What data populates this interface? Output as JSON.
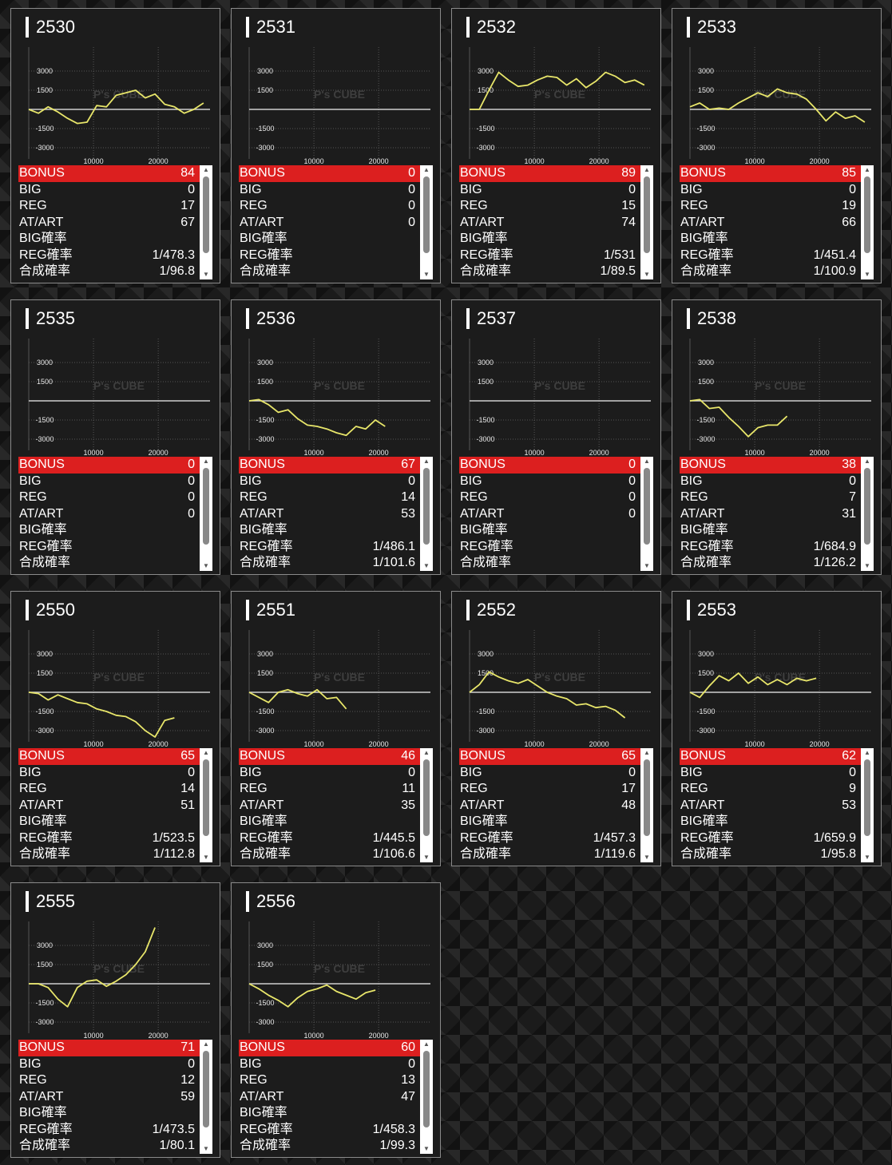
{
  "colors": {
    "bonus_bar": "#dc1f1f",
    "line": "#e8e66a",
    "axis": "#cfcfcf"
  },
  "chart_axis": {
    "y_ticks": [
      "3000",
      "1500",
      "-1500",
      "-3000"
    ],
    "x_ticks": [
      "10000",
      "20000"
    ]
  },
  "row_labels": {
    "bonus": "BONUS",
    "big": "BIG",
    "reg": "REG",
    "atart": "AT/ART",
    "big_rate": "BIG確率",
    "reg_rate": "REG確率",
    "total_rate": "合成確率"
  },
  "watermark": "P's CUBE",
  "scroll_icons": {
    "up": "▲",
    "down": "▼"
  },
  "machines": [
    {
      "number": "2530",
      "bonus": "84",
      "big": "0",
      "reg": "17",
      "atart": "67",
      "big_rate": "",
      "reg_rate": "1/478.3",
      "total_rate": "1/96.8"
    },
    {
      "number": "2531",
      "bonus": "0",
      "big": "0",
      "reg": "0",
      "atart": "0",
      "big_rate": "",
      "reg_rate": "",
      "total_rate": ""
    },
    {
      "number": "2532",
      "bonus": "89",
      "big": "0",
      "reg": "15",
      "atart": "74",
      "big_rate": "",
      "reg_rate": "1/531",
      "total_rate": "1/89.5"
    },
    {
      "number": "2533",
      "bonus": "85",
      "big": "0",
      "reg": "19",
      "atart": "66",
      "big_rate": "",
      "reg_rate": "1/451.4",
      "total_rate": "1/100.9"
    },
    {
      "number": "2535",
      "bonus": "0",
      "big": "0",
      "reg": "0",
      "atart": "0",
      "big_rate": "",
      "reg_rate": "",
      "total_rate": ""
    },
    {
      "number": "2536",
      "bonus": "67",
      "big": "0",
      "reg": "14",
      "atart": "53",
      "big_rate": "",
      "reg_rate": "1/486.1",
      "total_rate": "1/101.6"
    },
    {
      "number": "2537",
      "bonus": "0",
      "big": "0",
      "reg": "0",
      "atart": "0",
      "big_rate": "",
      "reg_rate": "",
      "total_rate": ""
    },
    {
      "number": "2538",
      "bonus": "38",
      "big": "0",
      "reg": "7",
      "atart": "31",
      "big_rate": "",
      "reg_rate": "1/684.9",
      "total_rate": "1/126.2"
    },
    {
      "number": "2550",
      "bonus": "65",
      "big": "0",
      "reg": "14",
      "atart": "51",
      "big_rate": "",
      "reg_rate": "1/523.5",
      "total_rate": "1/112.8"
    },
    {
      "number": "2551",
      "bonus": "46",
      "big": "0",
      "reg": "11",
      "atart": "35",
      "big_rate": "",
      "reg_rate": "1/445.5",
      "total_rate": "1/106.6"
    },
    {
      "number": "2552",
      "bonus": "65",
      "big": "0",
      "reg": "17",
      "atart": "48",
      "big_rate": "",
      "reg_rate": "1/457.3",
      "total_rate": "1/119.6"
    },
    {
      "number": "2553",
      "bonus": "62",
      "big": "0",
      "reg": "9",
      "atart": "53",
      "big_rate": "",
      "reg_rate": "1/659.9",
      "total_rate": "1/95.8"
    },
    {
      "number": "2555",
      "bonus": "71",
      "big": "0",
      "reg": "12",
      "atart": "59",
      "big_rate": "",
      "reg_rate": "1/473.5",
      "total_rate": "1/80.1"
    },
    {
      "number": "2556",
      "bonus": "60",
      "big": "0",
      "reg": "13",
      "atart": "47",
      "big_rate": "",
      "reg_rate": "1/458.3",
      "total_rate": "1/99.3"
    }
  ],
  "chart_data": [
    {
      "type": "line",
      "title": "2530",
      "ylim": [
        -4000,
        4500
      ],
      "x": [
        0,
        1500,
        3000,
        4500,
        6000,
        7500,
        9000,
        10500,
        12000,
        13500,
        15000,
        16500,
        18000,
        19500,
        21000,
        22500,
        24000,
        25500,
        27000
      ],
      "series": [
        {
          "values": [
            0,
            -300,
            200,
            -200,
            -700,
            -1100,
            -1000,
            300,
            200,
            1100,
            1300,
            1500,
            900,
            1200,
            400,
            200,
            -300,
            0,
            500
          ]
        }
      ]
    },
    {
      "type": "line",
      "title": "2531",
      "ylim": [
        -4000,
        4500
      ],
      "x": [],
      "series": [
        {
          "values": []
        }
      ]
    },
    {
      "type": "line",
      "title": "2532",
      "ylim": [
        -4000,
        4500
      ],
      "x": [
        0,
        1500,
        3000,
        4500,
        6000,
        7500,
        9000,
        10500,
        12000,
        13500,
        15000,
        16500,
        18000,
        19500,
        21000,
        22500,
        24000,
        25500,
        27000
      ],
      "series": [
        {
          "values": [
            0,
            0,
            1500,
            2900,
            2300,
            1800,
            1900,
            2300,
            2600,
            2500,
            1900,
            2400,
            1700,
            2200,
            2900,
            2600,
            2100,
            2300,
            1900
          ]
        }
      ]
    },
    {
      "type": "line",
      "title": "2533",
      "ylim": [
        -4000,
        4500
      ],
      "x": [
        0,
        1500,
        3000,
        4500,
        6000,
        7500,
        9000,
        10500,
        12000,
        13500,
        15000,
        16500,
        18000,
        19500,
        21000,
        22500,
        24000,
        25500,
        27000
      ],
      "series": [
        {
          "values": [
            200,
            500,
            0,
            100,
            0,
            500,
            900,
            1300,
            1000,
            1600,
            1300,
            1200,
            800,
            0,
            -900,
            -200,
            -700,
            -500,
            -1000
          ]
        }
      ]
    },
    {
      "type": "line",
      "title": "2535",
      "ylim": [
        -4000,
        4500
      ],
      "x": [],
      "series": [
        {
          "values": []
        }
      ]
    },
    {
      "type": "line",
      "title": "2536",
      "ylim": [
        -4000,
        4500
      ],
      "x": [
        0,
        1500,
        3000,
        4500,
        6000,
        7500,
        9000,
        10500,
        12000,
        13500,
        15000,
        16500,
        18000,
        19500,
        21000
      ],
      "series": [
        {
          "values": [
            0,
            100,
            -300,
            -900,
            -700,
            -1400,
            -1900,
            -2000,
            -2200,
            -2500,
            -2700,
            -2000,
            -2200,
            -1500,
            -2000
          ]
        }
      ]
    },
    {
      "type": "line",
      "title": "2537",
      "ylim": [
        -4000,
        4500
      ],
      "x": [],
      "series": [
        {
          "values": []
        }
      ]
    },
    {
      "type": "line",
      "title": "2538",
      "ylim": [
        -4000,
        4500
      ],
      "x": [
        0,
        1500,
        3000,
        4500,
        6000,
        7500,
        9000,
        10500,
        12000,
        13500,
        15000
      ],
      "series": [
        {
          "values": [
            0,
            100,
            -600,
            -500,
            -1300,
            -2000,
            -2800,
            -2100,
            -1900,
            -1900,
            -1200
          ]
        }
      ]
    },
    {
      "type": "line",
      "title": "2550",
      "ylim": [
        -4000,
        4500
      ],
      "x": [
        0,
        1500,
        3000,
        4500,
        6000,
        7500,
        9000,
        10500,
        12000,
        13500,
        15000,
        16500,
        18000,
        19500,
        21000,
        22500
      ],
      "series": [
        {
          "values": [
            0,
            -100,
            -600,
            -200,
            -500,
            -800,
            -900,
            -1300,
            -1500,
            -1800,
            -1900,
            -2300,
            -3000,
            -3500,
            -2200,
            -2000
          ]
        }
      ]
    },
    {
      "type": "line",
      "title": "2551",
      "ylim": [
        -4000,
        4500
      ],
      "x": [
        0,
        1500,
        3000,
        4500,
        6000,
        7500,
        9000,
        10500,
        12000,
        13500,
        15000
      ],
      "series": [
        {
          "values": [
            0,
            -400,
            -800,
            0,
            200,
            -100,
            -300,
            200,
            -500,
            -400,
            -1300
          ]
        }
      ]
    },
    {
      "type": "line",
      "title": "2552",
      "ylim": [
        -4000,
        4500
      ],
      "x": [
        0,
        1500,
        3000,
        4500,
        6000,
        7500,
        9000,
        10500,
        12000,
        13500,
        15000,
        16500,
        18000,
        19500,
        21000,
        22500,
        24000
      ],
      "series": [
        {
          "values": [
            0,
            600,
            1600,
            1200,
            900,
            700,
            1000,
            500,
            0,
            -300,
            -500,
            -1000,
            -900,
            -1200,
            -1100,
            -1400,
            -2000
          ]
        }
      ]
    },
    {
      "type": "line",
      "title": "2553",
      "ylim": [
        -4000,
        4500
      ],
      "x": [
        0,
        1500,
        3000,
        4500,
        6000,
        7500,
        9000,
        10500,
        12000,
        13500,
        15000,
        16500,
        18000,
        19500
      ],
      "series": [
        {
          "values": [
            0,
            -400,
            500,
            1300,
            900,
            1500,
            700,
            1200,
            600,
            1000,
            600,
            1100,
            900,
            1100
          ]
        }
      ]
    },
    {
      "type": "line",
      "title": "2555",
      "ylim": [
        -4000,
        4500
      ],
      "x": [
        0,
        1500,
        3000,
        4500,
        6000,
        7500,
        9000,
        10500,
        12000,
        13500,
        15000,
        16500,
        18000,
        19500
      ],
      "series": [
        {
          "values": [
            0,
            0,
            -300,
            -1200,
            -1800,
            -300,
            200,
            300,
            -200,
            200,
            700,
            1500,
            2500,
            4400
          ]
        }
      ]
    },
    {
      "type": "line",
      "title": "2556",
      "ylim": [
        -4000,
        4500
      ],
      "x": [
        0,
        1500,
        3000,
        4500,
        6000,
        7500,
        9000,
        10500,
        12000,
        13500,
        15000,
        16500,
        18000,
        19500
      ],
      "series": [
        {
          "values": [
            0,
            -400,
            -900,
            -1300,
            -1800,
            -1100,
            -600,
            -400,
            -100,
            -600,
            -900,
            -1200,
            -700,
            -500
          ]
        }
      ]
    }
  ]
}
